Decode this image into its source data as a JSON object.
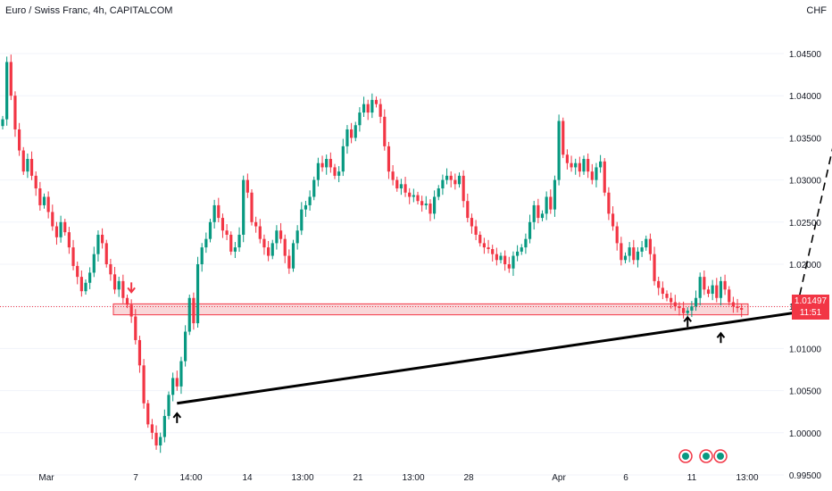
{
  "header": {
    "title": "Euro / Swiss Franc, 4h, CAPITALCOM",
    "currency": "CHF"
  },
  "price_tag": {
    "price": "1.01497",
    "countdown": "11:51"
  },
  "colors": {
    "up": "#089981",
    "down": "#f23645",
    "zone_fill": "#f7c6c9",
    "zone_border": "#f23645",
    "trendline": "#000000",
    "projection": "#000000"
  },
  "chart_data": {
    "type": "candlestick",
    "title": "Euro / Swiss Franc, 4h, CAPITALCOM",
    "ylim": [
      0.995,
      1.048
    ],
    "y_ticks": [
      "1.04500",
      "1.04000",
      "1.03500",
      "1.03000",
      "1.02500",
      "1.02000",
      "1.01500",
      "1.01000",
      "1.00500",
      "1.00000",
      "0.99500"
    ],
    "x_ticks": [
      "Mar",
      "7",
      "14:00",
      "14",
      "13:00",
      "21",
      "13:00",
      "28",
      "Apr",
      "6",
      "11",
      "13:00"
    ],
    "last_price": 1.01497,
    "zone": {
      "from": 1.014,
      "to": 1.0153
    },
    "trendline": {
      "from_bar": 42,
      "from_price": 1.0035,
      "to_bar": 189,
      "to_price": 1.0145
    },
    "projection": {
      "from_bar": 187,
      "from_price": 1.0148,
      "to_bar": 196,
      "to_price": 1.044
    },
    "arrows": [
      {
        "type": "down",
        "bar": 31,
        "price": 1.017
      },
      {
        "type": "up",
        "bar": 42,
        "price": 1.002
      },
      {
        "type": "up",
        "bar": 165,
        "price": 1.0134
      },
      {
        "type": "up",
        "bar": 173,
        "price": 1.0115
      }
    ],
    "closes": [
      1.0372,
      1.044,
      1.04,
      1.036,
      1.0335,
      1.031,
      1.0325,
      1.0305,
      1.029,
      1.027,
      1.028,
      1.0262,
      1.0245,
      1.0232,
      1.025,
      1.0238,
      1.022,
      1.0198,
      1.0185,
      1.0168,
      1.0178,
      1.019,
      1.0212,
      1.0235,
      1.0225,
      1.02,
      1.0188,
      1.017,
      1.018,
      1.016,
      1.0152,
      1.0138,
      1.011,
      1.008,
      1.0035,
      1.001,
      1.0,
      0.9985,
      0.9995,
      1.002,
      1.0045,
      1.0065,
      1.0055,
      1.0085,
      1.012,
      1.016,
      1.013,
      1.02,
      1.022,
      1.023,
      1.025,
      1.027,
      1.0255,
      1.024,
      1.0235,
      1.0215,
      1.022,
      1.0235,
      1.03,
      1.0285,
      1.025,
      1.0245,
      1.023,
      1.022,
      1.021,
      1.0225,
      1.024,
      1.023,
      1.021,
      1.0195,
      1.0225,
      1.024,
      1.0265,
      1.027,
      1.028,
      1.03,
      1.032,
      1.0315,
      1.0325,
      1.0315,
      1.0305,
      1.031,
      1.034,
      1.036,
      1.035,
      1.0365,
      1.038,
      1.039,
      1.038,
      1.0395,
      1.039,
      1.0375,
      1.034,
      1.031,
      1.03,
      1.029,
      1.0295,
      1.0285,
      1.028,
      1.0282,
      1.0275,
      1.027,
      1.0272,
      1.026,
      1.028,
      1.029,
      1.03,
      1.0305,
      1.03,
      1.0295,
      1.0305,
      1.0275,
      1.0255,
      1.0245,
      1.0235,
      1.0225,
      1.022,
      1.0218,
      1.0212,
      1.0205,
      1.021,
      1.02,
      1.0195,
      1.021,
      1.0215,
      1.022,
      1.023,
      1.025,
      1.027,
      1.0255,
      1.026,
      1.028,
      1.0265,
      1.03,
      1.037,
      1.033,
      1.032,
      1.0315,
      1.032,
      1.031,
      1.0325,
      1.031,
      1.03,
      1.0315,
      1.0322,
      1.0285,
      1.026,
      1.0245,
      1.0225,
      1.0205,
      1.021,
      1.022,
      1.0205,
      1.0215,
      1.022,
      1.023,
      1.0212,
      1.018,
      1.0172,
      1.0165,
      1.016,
      1.0155,
      1.015,
      1.0148,
      1.0142,
      1.0145,
      1.015,
      1.016,
      1.0185,
      1.017,
      1.0165,
      1.0175,
      1.016,
      1.018,
      1.017,
      1.0155,
      1.015,
      1.0148,
      1.0146
    ]
  }
}
